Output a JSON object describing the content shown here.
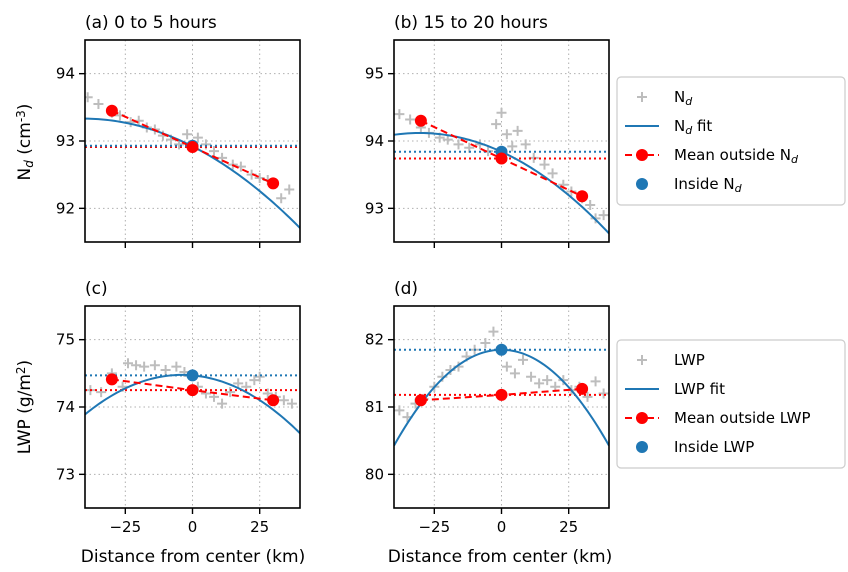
{
  "figure": {
    "xlabel": "Distance from center (km)",
    "ylabel_top": "N$d$ (cm$-3$)",
    "ylabel_bottom": "LWP (g/m$2$)"
  },
  "colors": {
    "fit": "#1f77b4",
    "mean_outside": "#ff0000",
    "inside": "#1f77b4",
    "scatter": "#bdbdbd",
    "grid": "#b0b0b0"
  },
  "legends": {
    "top": {
      "placement": "right of panels a-b",
      "entries": [
        {
          "label": "N",
          "sub": "d",
          "suffix": "",
          "marker": "plus"
        },
        {
          "label": "N",
          "sub": "d",
          "suffix": " fit",
          "marker": "line"
        },
        {
          "label": "Mean outside N",
          "sub": "d",
          "suffix": "",
          "marker": "dashed-dot"
        },
        {
          "label": "Inside N",
          "sub": "d",
          "suffix": "",
          "marker": "dot"
        }
      ]
    },
    "bottom": {
      "placement": "right of panels c-d",
      "entries": [
        {
          "label": "LWP",
          "sub": "",
          "suffix": "",
          "marker": "plus"
        },
        {
          "label": "LWP fit",
          "sub": "",
          "suffix": "",
          "marker": "line"
        },
        {
          "label": "Mean outside LWP",
          "sub": "",
          "suffix": "",
          "marker": "dashed-dot"
        },
        {
          "label": "Inside LWP",
          "sub": "",
          "suffix": "",
          "marker": "dot"
        }
      ]
    }
  },
  "chart_data": [
    {
      "type": "scatter",
      "panel": "a",
      "title": "(a)   0 to 5 hours",
      "xlabel": "",
      "ylabel": "N_d (cm^-3)",
      "xlim": [
        -40,
        40
      ],
      "ylim": [
        91.5,
        94.5
      ],
      "xticks": [
        -25,
        0,
        25
      ],
      "xtick_labels": [],
      "yticks": [
        92,
        93,
        94
      ],
      "grid": true,
      "scatter": {
        "name": "N_d",
        "points": [
          [
            -39,
            93.65
          ],
          [
            -35,
            93.55
          ],
          [
            -30,
            93.42
          ],
          [
            -27,
            93.38
          ],
          [
            -23,
            93.28
          ],
          [
            -20,
            93.3
          ],
          [
            -17,
            93.2
          ],
          [
            -14,
            93.17
          ],
          [
            -11,
            93.08
          ],
          [
            -8,
            93.02
          ],
          [
            -5,
            92.95
          ],
          [
            -2,
            93.1
          ],
          [
            2,
            93.05
          ],
          [
            5,
            92.95
          ],
          [
            8,
            92.85
          ],
          [
            11,
            92.75
          ],
          [
            15,
            92.65
          ],
          [
            18,
            92.62
          ],
          [
            22,
            92.5
          ],
          [
            25,
            92.45
          ],
          [
            28,
            92.42
          ],
          [
            33,
            92.15
          ],
          [
            36,
            92.28
          ]
        ]
      },
      "fit": {
        "name": "N_d fit",
        "a": -0.00025,
        "b": -0.0203,
        "c": 92.92
      },
      "mean_outside": {
        "name": "Mean outside N_d",
        "x": [
          -30,
          0,
          30
        ],
        "y": [
          93.45,
          92.91,
          92.37
        ],
        "hline": 92.91
      },
      "inside": {
        "name": "Inside N_d",
        "x": 0,
        "y": 92.93,
        "hline": 92.93
      }
    },
    {
      "type": "scatter",
      "panel": "b",
      "title": "(b) 15 to 20 hours",
      "xlabel": "",
      "ylabel": "",
      "xlim": [
        -40,
        40
      ],
      "ylim": [
        92.5,
        95.5
      ],
      "xticks": [
        -25,
        0,
        25
      ],
      "xtick_labels": [],
      "yticks": [
        93,
        94,
        95
      ],
      "grid": true,
      "scatter": {
        "name": "N_d",
        "points": [
          [
            -38,
            94.4
          ],
          [
            -34,
            94.32
          ],
          [
            -30,
            94.2
          ],
          [
            -27,
            94.12
          ],
          [
            -23,
            94.05
          ],
          [
            -20,
            94.02
          ],
          [
            -16,
            93.95
          ],
          [
            -12,
            93.9
          ],
          [
            -8,
            93.95
          ],
          [
            -5,
            93.85
          ],
          [
            -2,
            94.25
          ],
          [
            0,
            94.42
          ],
          [
            2,
            94.1
          ],
          [
            4,
            93.92
          ],
          [
            6,
            94.15
          ],
          [
            9,
            93.95
          ],
          [
            12,
            93.75
          ],
          [
            16,
            93.65
          ],
          [
            19,
            93.52
          ],
          [
            23,
            93.35
          ],
          [
            26,
            93.25
          ],
          [
            30,
            93.15
          ],
          [
            33,
            93.05
          ],
          [
            35,
            92.85
          ],
          [
            38,
            92.9
          ]
        ]
      },
      "fit": {
        "name": "N_d fit",
        "a": -0.0003,
        "b": -0.0183,
        "c": 93.84
      },
      "mean_outside": {
        "name": "Mean outside N_d",
        "x": [
          -30,
          0,
          30
        ],
        "y": [
          94.3,
          93.74,
          93.18
        ],
        "hline": 93.74
      },
      "inside": {
        "name": "Inside N_d",
        "x": 0,
        "y": 93.84,
        "hline": 93.84
      }
    },
    {
      "type": "scatter",
      "panel": "c",
      "title": "(c)",
      "xlabel": "Distance from center (km)",
      "ylabel": "LWP (g/m^2)",
      "xlim": [
        -40,
        40
      ],
      "ylim": [
        72.5,
        75.5
      ],
      "xticks": [
        -25,
        0,
        25
      ],
      "xtick_labels": [
        "−25",
        "0",
        "25"
      ],
      "yticks": [
        73,
        74,
        75
      ],
      "grid": true,
      "scatter": {
        "name": "LWP",
        "points": [
          [
            -38,
            74.25
          ],
          [
            -34,
            74.22
          ],
          [
            -30,
            74.5
          ],
          [
            -26,
            74.3
          ],
          [
            -24,
            74.65
          ],
          [
            -21,
            74.62
          ],
          [
            -18,
            74.6
          ],
          [
            -14,
            74.62
          ],
          [
            -10,
            74.55
          ],
          [
            -6,
            74.6
          ],
          [
            -3,
            74.52
          ],
          [
            2,
            74.3
          ],
          [
            5,
            74.2
          ],
          [
            8,
            74.15
          ],
          [
            11,
            74.05
          ],
          [
            14,
            74.22
          ],
          [
            17,
            74.35
          ],
          [
            20,
            74.3
          ],
          [
            23,
            74.4
          ],
          [
            25,
            74.45
          ],
          [
            28,
            74.2
          ],
          [
            31,
            74.15
          ],
          [
            34,
            74.1
          ],
          [
            37,
            74.05
          ]
        ]
      },
      "fit": {
        "name": "LWP fit",
        "a": -0.00045,
        "b": -0.0035,
        "c": 74.47
      },
      "mean_outside": {
        "name": "Mean outside LWP",
        "x": [
          -30,
          0,
          30
        ],
        "y": [
          74.41,
          74.25,
          74.1
        ],
        "hline": 74.25
      },
      "inside": {
        "name": "Inside LWP",
        "x": 0,
        "y": 74.47,
        "hline": 74.47
      }
    },
    {
      "type": "scatter",
      "panel": "d",
      "title": "(d)",
      "xlabel": "Distance from center (km)",
      "ylabel": "",
      "xlim": [
        -40,
        40
      ],
      "ylim": [
        79.5,
        82.5
      ],
      "xticks": [
        -25,
        0,
        25
      ],
      "xtick_labels": [
        "−25",
        "0",
        "25"
      ],
      "yticks": [
        80,
        81,
        82
      ],
      "grid": true,
      "scatter": {
        "name": "LWP",
        "points": [
          [
            -38,
            80.95
          ],
          [
            -35,
            80.85
          ],
          [
            -32,
            81.05
          ],
          [
            -29,
            81.12
          ],
          [
            -25,
            81.3
          ],
          [
            -22,
            81.45
          ],
          [
            -19,
            81.55
          ],
          [
            -16,
            81.6
          ],
          [
            -13,
            81.75
          ],
          [
            -10,
            81.85
          ],
          [
            -6,
            81.95
          ],
          [
            -3,
            82.12
          ],
          [
            2,
            81.6
          ],
          [
            5,
            81.5
          ],
          [
            8,
            81.7
          ],
          [
            11,
            81.45
          ],
          [
            14,
            81.35
          ],
          [
            17,
            81.4
          ],
          [
            20,
            81.3
          ],
          [
            23,
            81.4
          ],
          [
            26,
            81.25
          ],
          [
            29,
            81.3
          ],
          [
            32,
            81.15
          ],
          [
            35,
            81.38
          ],
          [
            38,
            81.2
          ]
        ]
      },
      "fit": {
        "name": "LWP fit",
        "a": -0.00089,
        "b": 0.0,
        "c": 81.85
      },
      "mean_outside": {
        "name": "Mean outside LWP",
        "x": [
          -30,
          0,
          30
        ],
        "y": [
          81.1,
          81.18,
          81.27
        ],
        "hline": 81.18
      },
      "inside": {
        "name": "Inside LWP",
        "x": 0,
        "y": 81.85,
        "hline": 81.85
      }
    }
  ]
}
